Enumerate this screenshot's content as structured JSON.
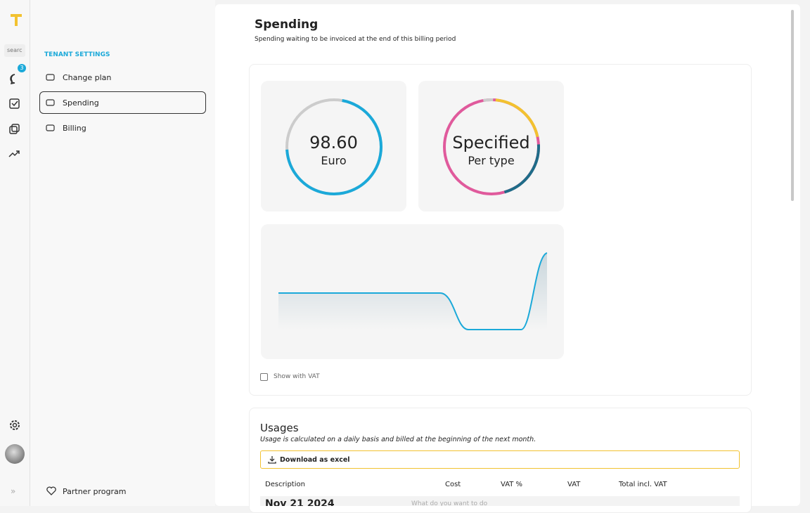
{
  "sidebar": {
    "search": "searc",
    "badge": "3"
  },
  "settings": {
    "heading": "TENANT SETTINGS",
    "items": [
      "Change plan",
      "Spending",
      "Billing"
    ],
    "footer": "Partner program"
  },
  "header": {
    "title": "Spending",
    "subtitle": "Spending waiting to be invoiced at the end of this billing period"
  },
  "cards": {
    "total": {
      "value": "98.60",
      "unit": "Euro"
    },
    "types": {
      "value": "Specified",
      "unit": "Per type"
    }
  },
  "vat_toggle": "Show with VAT",
  "usages": {
    "title": "Usages",
    "note": "Usage is calculated on a daily basis and billed at the beginning of the next month.",
    "download": "Download as excel",
    "columns": [
      "Description",
      "Cost",
      "VAT %",
      "VAT",
      "Total incl. VAT"
    ],
    "first_row": "Nov 21 2024",
    "hint": "What do you want to do"
  }
}
